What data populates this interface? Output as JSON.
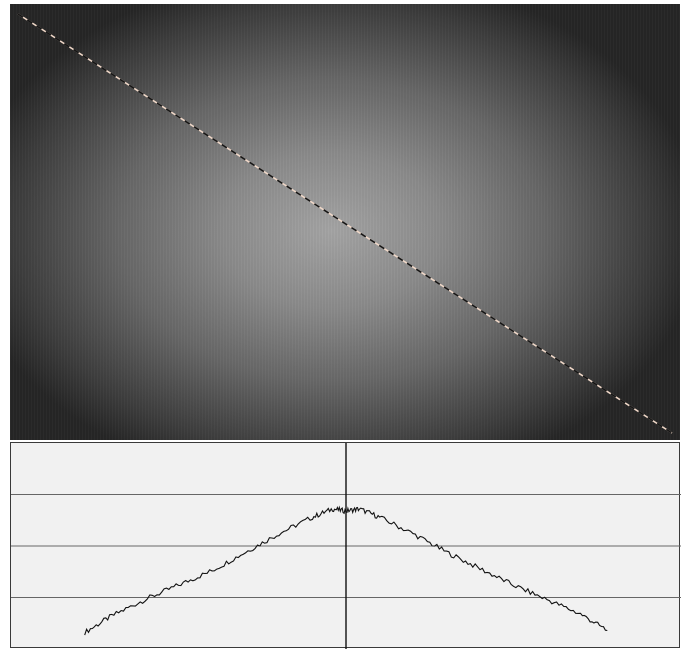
{
  "image_view": {
    "colors": {
      "center": "#a4a4a4",
      "edge": "#262626",
      "line_light": "#f0d8c8",
      "line_dark": "#151515"
    }
  },
  "chart_data": {
    "type": "line",
    "title": "",
    "xlabel": "",
    "ylabel": "",
    "xlim": [
      0,
      1
    ],
    "ylim": [
      0,
      1
    ],
    "grid": true,
    "gridlines_y": [
      0.25,
      0.5,
      0.75
    ],
    "center_marker_x": 0.5,
    "series": [
      {
        "x": [
          0.11,
          0.15,
          0.2,
          0.25,
          0.3,
          0.35,
          0.4,
          0.45,
          0.48,
          0.5,
          0.52,
          0.55,
          0.6,
          0.65,
          0.7,
          0.75,
          0.8,
          0.85,
          0.89
        ],
        "values": [
          0.08,
          0.16,
          0.24,
          0.31,
          0.38,
          0.47,
          0.56,
          0.64,
          0.68,
          0.67,
          0.68,
          0.64,
          0.56,
          0.47,
          0.39,
          0.31,
          0.24,
          0.17,
          0.09
        ]
      }
    ]
  }
}
